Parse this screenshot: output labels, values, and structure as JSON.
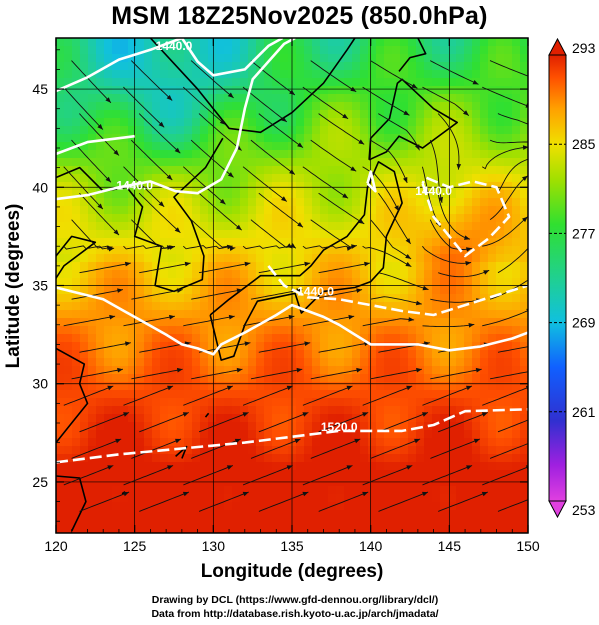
{
  "title": "MSM 18Z25Nov2025 (850.0hPa)",
  "axes": {
    "xlabel": "Longitude (degrees)",
    "ylabel": "Latitude  (degrees)",
    "x_ticks": [
      "120",
      "125",
      "130",
      "135",
      "140",
      "145",
      "150"
    ],
    "y_ticks": [
      "25",
      "30",
      "35",
      "40",
      "45"
    ],
    "xlim": [
      120,
      150
    ],
    "ylim": [
      22.4,
      47.6
    ]
  },
  "colorbar": {
    "ticks": [
      "293",
      "285",
      "277",
      "269",
      "261",
      "253"
    ],
    "range": [
      253,
      293
    ],
    "colors": [
      "#e040e0",
      "#b020e0",
      "#3030d0",
      "#1060ff",
      "#10c0e0",
      "#20d090",
      "#30e030",
      "#a0e000",
      "#f0e000",
      "#ffa000",
      "#ff5000",
      "#e02000"
    ]
  },
  "contours": {
    "labels": [
      "1440.0",
      "1440.0",
      "1440.0",
      "1440.0",
      "1520.0"
    ],
    "color": "#ffffff"
  },
  "footer": {
    "line1": "Drawing by DCL (https://www.gfd-dennou.org/library/dcl/)",
    "line2": "Data from http://database.rish.kyoto-u.ac.jp/arch/jmadata/"
  },
  "chart_data": {
    "type": "heatmap",
    "title": "MSM 18Z25Nov2025 (850.0hPa)",
    "xlabel": "Longitude (degrees)",
    "ylabel": "Latitude  (degrees)",
    "x_range": [
      120,
      150
    ],
    "y_range": [
      22.4,
      47.6
    ],
    "field": "temperature",
    "colorbar_range": [
      253,
      293
    ],
    "colorbar_ticks": [
      253,
      261,
      269,
      277,
      285,
      293
    ],
    "contour_values": [
      1440.0,
      1520.0
    ],
    "overlay": "streamlines",
    "grid": true
  }
}
